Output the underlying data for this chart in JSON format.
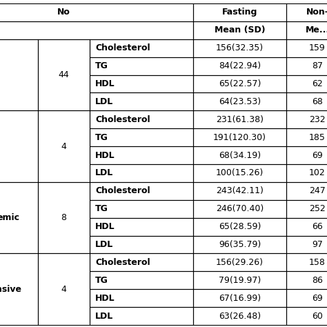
{
  "groups": [
    {
      "label": "",
      "no": "44",
      "rows": [
        {
          "lipid": "Cholesterol",
          "fasting": "156(32.35)",
          "non_fasting": "159"
        },
        {
          "lipid": "TG",
          "fasting": "84(22.94)",
          "non_fasting": "87"
        },
        {
          "lipid": "HDL",
          "fasting": "65(22.57)",
          "non_fasting": "62"
        },
        {
          "lipid": "LDL",
          "fasting": "64(23.53)",
          "non_fasting": "68"
        }
      ]
    },
    {
      "label": "",
      "no": "4",
      "rows": [
        {
          "lipid": "Cholesterol",
          "fasting": "231(61.38)",
          "non_fasting": "232"
        },
        {
          "lipid": "TG",
          "fasting": "191(120.30)",
          "non_fasting": "185"
        },
        {
          "lipid": "HDL",
          "fasting": "68(34.19)",
          "non_fasting": "69"
        },
        {
          "lipid": "LDL",
          "fasting": "100(15.26)",
          "non_fasting": "102"
        }
      ]
    },
    {
      "label": "emic",
      "no": "8",
      "rows": [
        {
          "lipid": "Cholesterol",
          "fasting": "243(42.11)",
          "non_fasting": "247"
        },
        {
          "lipid": "TG",
          "fasting": "246(70.40)",
          "non_fasting": "252"
        },
        {
          "lipid": "HDL",
          "fasting": "65(28.59)",
          "non_fasting": "66"
        },
        {
          "lipid": "LDL",
          "fasting": "96(35.79)",
          "non_fasting": "97"
        }
      ]
    },
    {
      "label": "nsive",
      "no": "4",
      "rows": [
        {
          "lipid": "Cholesterol",
          "fasting": "156(29.26)",
          "non_fasting": "158"
        },
        {
          "lipid": "TG",
          "fasting": "79(19.97)",
          "non_fasting": "86"
        },
        {
          "lipid": "HDL",
          "fasting": "67(16.99)",
          "non_fasting": "69"
        },
        {
          "lipid": "LDL",
          "fasting": "63(26.48)",
          "non_fasting": "60"
        }
      ]
    }
  ],
  "figsize": [
    4.74,
    4.74
  ],
  "dpi": 100,
  "bg_color": "#ffffff",
  "line_color": "#000000"
}
